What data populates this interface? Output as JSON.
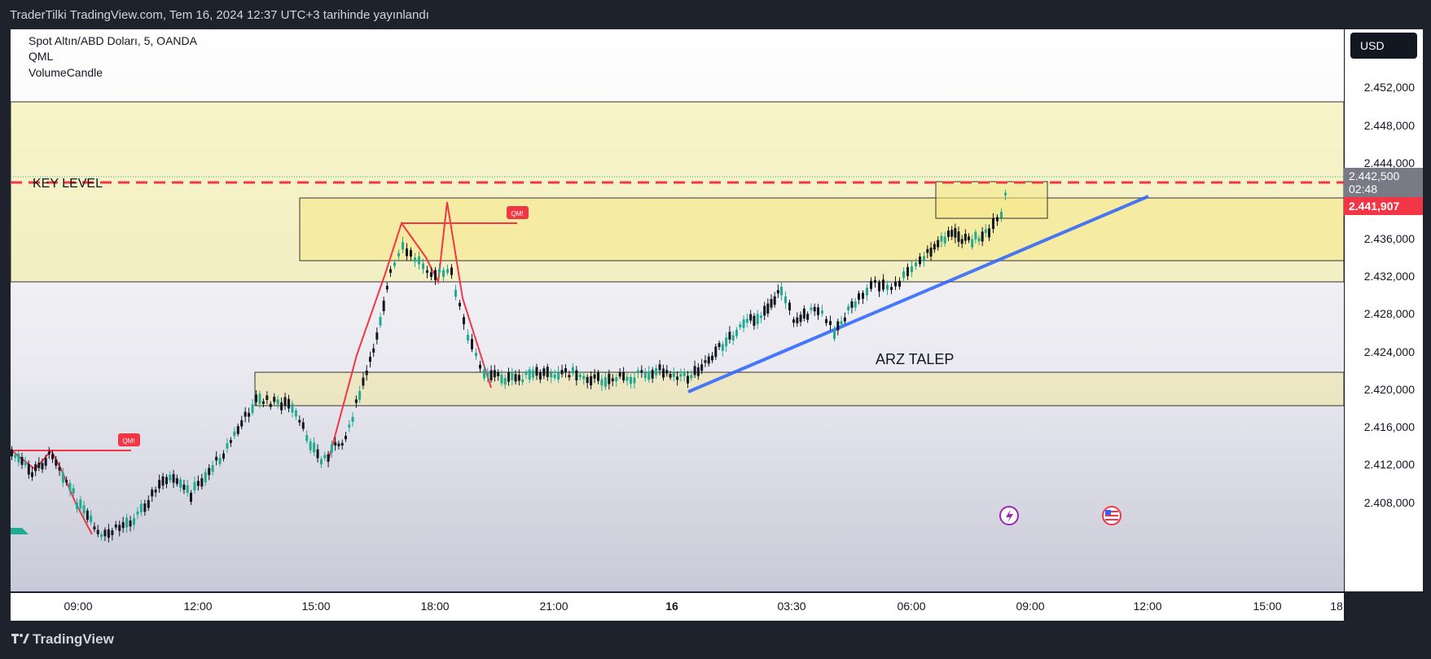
{
  "header": {
    "publish_line": "TraderTilki TradingView.com, Tem 16, 2024 12:37 UTC+3 tarihinde yayınlandı"
  },
  "legend": {
    "symbol": "Spot Altın/ABD Doları, 5, OANDA",
    "indicator1": "QML",
    "indicator2": "VolumeCandle"
  },
  "annotations": {
    "key_level": "KEY LEVEL",
    "arz_talep": "ARZ TALEP",
    "qm_badge": "QM!"
  },
  "price_axis": {
    "currency": "USD",
    "ticks": [
      "2.452,000",
      "2.448,000",
      "2.444,000",
      "2.436,000",
      "2.432,000",
      "2.428,000",
      "2.424,000",
      "2.420,000",
      "2.416,000",
      "2.412,000",
      "2.408,000"
    ],
    "marker_price": "2.442,500",
    "marker_timer": "02:48",
    "last_price": "2.441,907"
  },
  "time_axis": {
    "ticks": [
      "09:00",
      "12:00",
      "15:00",
      "18:00",
      "21:00",
      "16",
      "03:30",
      "06:00",
      "09:00",
      "12:00",
      "15:00",
      "18:"
    ]
  },
  "footer": {
    "brand": "TradingView"
  },
  "colors": {
    "background": "#1e222d",
    "zone_fill": "#f5ee9e",
    "key_level_line": "#f23645",
    "trend_line": "#2962ff",
    "up_candle": "#22ab94",
    "down_candle": "#f23645",
    "qml_line": "#f23645",
    "last_price_tag": "#f23645"
  },
  "icons": [
    "lightning-icon",
    "us-flag-icon",
    "tradingview-logo-icon"
  ]
}
